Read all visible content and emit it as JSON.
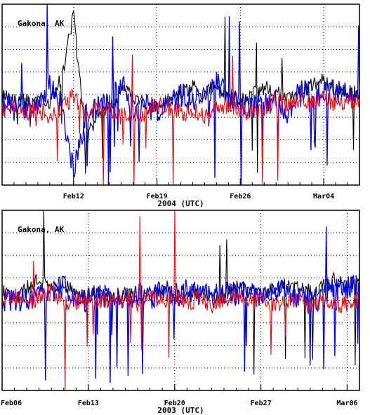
{
  "chart_data": [
    {
      "type": "line",
      "title": "",
      "annotation": "Gakona, AK",
      "xlabel": "2004 (UTC)",
      "ylabel": "",
      "x_ticks": [
        {
          "date": "2004-02-12",
          "label": "Feb12"
        },
        {
          "date": "2004-02-19",
          "label": "Feb19"
        },
        {
          "date": "2004-02-26",
          "label": "Feb26"
        },
        {
          "date": "2004-03-04",
          "label": "Mar04"
        }
      ],
      "xlim": [
        "2004-02-06",
        "2004-03-07"
      ],
      "ylim": [
        0,
        8
      ],
      "grid": true,
      "series": [
        {
          "color": "#000000",
          "values": [
            3.9,
            3.8,
            3.7,
            3.8,
            3.6,
            4.8,
            7.5,
            2.0,
            3.1,
            3.4,
            4.2,
            3.9,
            3.5,
            3.3,
            3.8,
            4.1,
            4.4,
            4.0,
            4.5,
            3.9,
            3.7,
            4.0,
            4.3,
            4.1,
            3.8,
            4.0,
            4.5,
            4.6,
            4.2,
            4.1
          ]
        },
        {
          "color": "#0000ff",
          "values": [
            3.6,
            3.3,
            3.5,
            3.4,
            4.4,
            3.5,
            0.5,
            3.0,
            3.4,
            3.6,
            4.5,
            3.5,
            3.6,
            3.2,
            3.4,
            4.0,
            3.7,
            3.9,
            4.6,
            3.8,
            3.5,
            3.4,
            3.5,
            3.7,
            3.2,
            4.3,
            4.0,
            4.1,
            4.2,
            4.0
          ]
        },
        {
          "color": "#ff0000",
          "values": [
            3.3,
            3.4,
            3.2,
            3.4,
            3.0,
            3.5,
            3.9,
            3.1,
            3.4,
            3.3,
            3.0,
            3.2,
            3.1,
            3.6,
            3.4,
            3.2,
            3.3,
            3.1,
            3.4,
            3.5,
            3.3,
            3.2,
            3.4,
            3.8,
            3.5,
            3.7,
            3.6,
            3.9,
            3.6,
            3.7
          ]
        }
      ]
    },
    {
      "type": "line",
      "title": "",
      "annotation": "Gakona, AK",
      "xlabel": "2003 (UTC)",
      "ylabel": "",
      "x_ticks": [
        {
          "date": "2003-02-06",
          "label": "Feb06"
        },
        {
          "date": "2003-02-13",
          "label": "Feb13"
        },
        {
          "date": "2003-02-20",
          "label": "Feb20"
        },
        {
          "date": "2003-02-27",
          "label": "Feb27"
        },
        {
          "date": "2003-03-06",
          "label": "Mar06"
        }
      ],
      "xlim": [
        "2003-02-06",
        "2003-03-07"
      ],
      "ylim": [
        0,
        8
      ],
      "grid": true,
      "series": [
        {
          "color": "#000000",
          "values": [
            4.4,
            4.0,
            4.6,
            4.9,
            4.7,
            4.8,
            4.2,
            4.3,
            4.4,
            4.0,
            4.3,
            4.1,
            4.2,
            4.4,
            4.1,
            4.3,
            4.4,
            4.1,
            4.2,
            4.6,
            4.4,
            4.2,
            4.5,
            4.7,
            4.5,
            4.4,
            4.6,
            4.9,
            4.6,
            5.0
          ]
        },
        {
          "color": "#0000ff",
          "values": [
            4.0,
            3.9,
            4.1,
            4.3,
            4.2,
            4.6,
            3.8,
            4.0,
            4.2,
            4.1,
            4.0,
            4.3,
            4.1,
            4.4,
            4.2,
            4.4,
            4.3,
            4.1,
            4.4,
            4.2,
            4.5,
            4.0,
            4.3,
            4.5,
            4.2,
            4.0,
            4.1,
            4.6,
            4.5,
            4.7
          ]
        },
        {
          "color": "#ff0000",
          "values": [
            3.9,
            4.2,
            3.8,
            4.1,
            4.4,
            3.9,
            4.0,
            3.8,
            4.0,
            3.9,
            4.0,
            3.9,
            4.3,
            3.9,
            4.2,
            3.9,
            4.1,
            3.8,
            4.0,
            4.2,
            3.9,
            4.0,
            3.8,
            3.9,
            4.1,
            3.7,
            4.0,
            3.8,
            3.9,
            4.0
          ]
        }
      ]
    }
  ]
}
